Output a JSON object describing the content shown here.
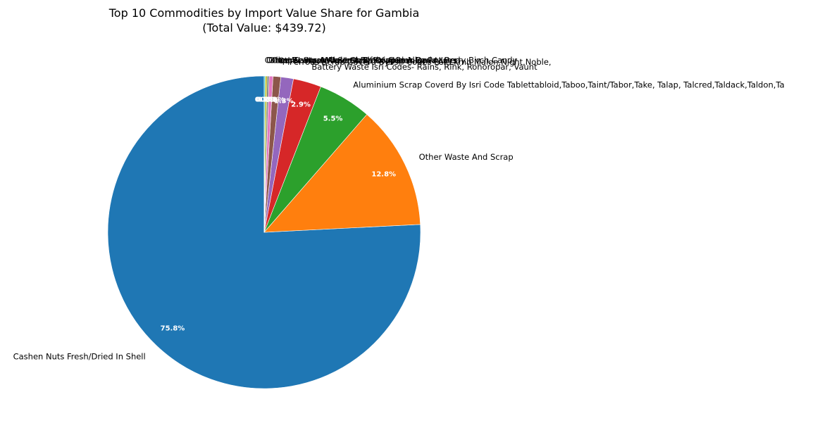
{
  "chart_data": {
    "type": "pie",
    "title_line1": "Top 10 Commodities by Import Value Share for Gambia",
    "title_line2": "(Total Value: $439.72)",
    "slices": [
      {
        "label": "Cashen Nuts Fresh/Dried In Shell",
        "value": 75.8,
        "pct_label": "75.8%",
        "color": "#1f77b4"
      },
      {
        "label": "Other Waste And Scrap",
        "value": 12.8,
        "pct_label": "12.8%",
        "color": "#ff7f0e"
      },
      {
        "label": "Aluminium Scrap Coverd By Isri Code Tablettabloid,Taboo,Taint/Tabor,Take, Talap, Talcred,Taldack,Taldon,Ta",
        "value": 5.5,
        "pct_label": "5.5%",
        "color": "#2ca02c"
      },
      {
        "label": "Battery Waste Isri Codes- Rains, Rink, Rohoropar, Vaunt",
        "value": 2.9,
        "pct_label": "2.9%",
        "color": "#d62728"
      },
      {
        "label": "Ferrous Scrap Coverd By Isri Codes Ler,Lkmh,Malon,Night,Noble,",
        "value": 1.3,
        "pct_label": "1.3%",
        "color": "#9467bd"
      },
      {
        "label": "Other Waste And Scrap Of Aluminium Alloys",
        "value": 0.8,
        "pct_label": "0.8%",
        "color": "#8c564b"
      },
      {
        "label": "Copper Scrap Coverd By Isri Codes Barley,Berry,Birch,Candy",
        "value": 0.4,
        "pct_label": "0.4%",
        "color": "#e377c2"
      },
      {
        "label": "Other Ferrous Waste And Scrap",
        "value": 0.2,
        "pct_label": "0.2%",
        "color": "#7f7f7f"
      },
      {
        "label": "Other Waste And Scrap Of Copper Alloys",
        "value": 0.2,
        "pct_label": "0.2%",
        "color": "#bcbd22"
      },
      {
        "label": "Cocoa Beans, Whole Or Broken, Raw Or Roasted",
        "value": 0.1,
        "pct_label": "0.1%",
        "color": "#17becf"
      }
    ]
  }
}
